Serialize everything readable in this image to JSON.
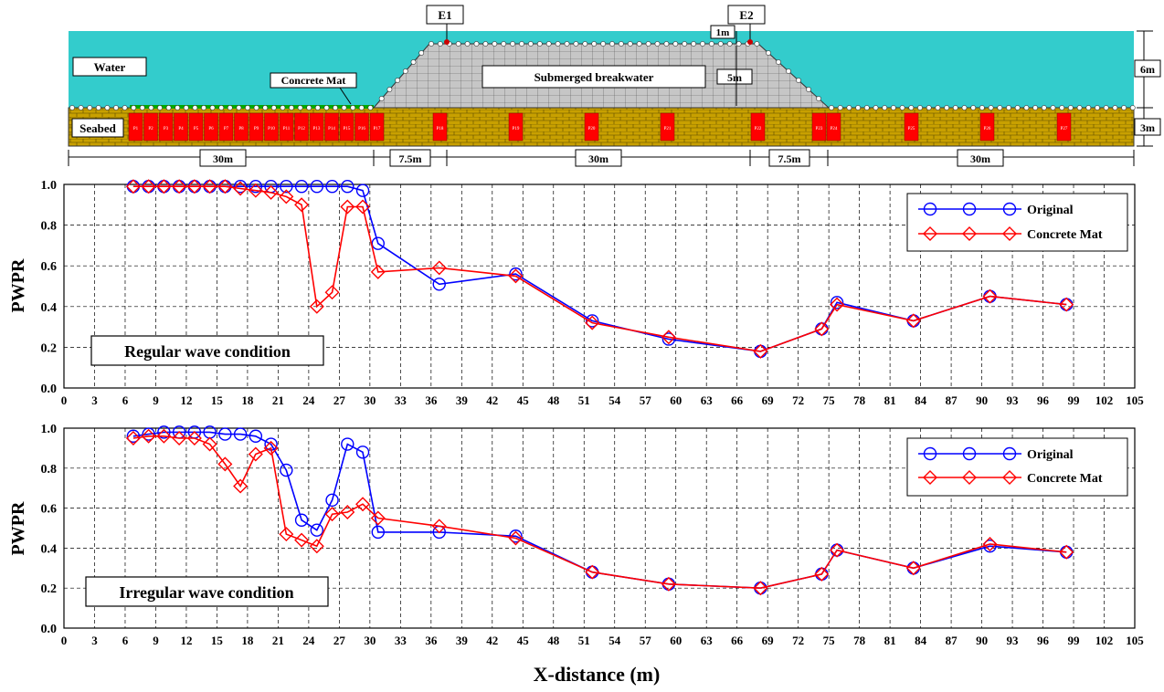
{
  "schematic": {
    "water_label": "Water",
    "seabed_label": "Seabed",
    "concrete_mat_label": "Concrete Mat",
    "breakwater_label": "Submerged breakwater",
    "gauge_labels": [
      "E1",
      "E2"
    ],
    "dim_1m": "1m",
    "dim_5m": "5m",
    "dim_6m": "6m",
    "dim_3m": "3m",
    "segment_dims": [
      "30m",
      "7.5m",
      "30m",
      "7.5m",
      "30m"
    ],
    "probe_labels": [
      "P1",
      "P2",
      "P3",
      "P4",
      "P5",
      "P6",
      "P7",
      "P8",
      "P9",
      "P10",
      "P11",
      "P12",
      "P13",
      "P14",
      "P15",
      "P16",
      "P17",
      "P18",
      "P19",
      "P20",
      "P21",
      "P22",
      "P23",
      "P24",
      "P25",
      "P26",
      "P27"
    ],
    "colors": {
      "water": "#33cccc",
      "seabed": "#c8a000",
      "probe": "#ff0000",
      "mat": "#00aa00",
      "breakwater": "#bdbdbd"
    }
  },
  "chart_data": [
    {
      "type": "line",
      "annotation": "Regular wave condition",
      "ylabel": "PWPR",
      "xlabel": "",
      "xlim": [
        0,
        105
      ],
      "ylim": [
        0,
        1.0
      ],
      "xticks": [
        0,
        3,
        6,
        9,
        12,
        15,
        18,
        21,
        24,
        27,
        30,
        33,
        36,
        39,
        42,
        45,
        48,
        51,
        54,
        57,
        60,
        63,
        66,
        69,
        72,
        75,
        78,
        81,
        84,
        87,
        90,
        93,
        96,
        99,
        102,
        105
      ],
      "yticks": [
        "0.0",
        "0.2",
        "0.4",
        "0.6",
        "0.8",
        "1.0"
      ],
      "grid": true,
      "legend_position": "top-right",
      "series": [
        {
          "name": "Original",
          "color": "#0000ff",
          "marker": "circle",
          "x": [
            6.8,
            8.3,
            9.8,
            11.3,
            12.8,
            14.3,
            15.8,
            17.3,
            18.8,
            20.3,
            21.8,
            23.3,
            24.8,
            26.3,
            27.8,
            29.3,
            30.8,
            36.8,
            44.3,
            51.8,
            59.3,
            68.3,
            74.3,
            75.8,
            83.3,
            90.8,
            98.3
          ],
          "y": [
            0.99,
            0.99,
            0.99,
            0.99,
            0.99,
            0.99,
            0.99,
            0.99,
            0.99,
            0.99,
            0.99,
            0.99,
            0.99,
            0.99,
            0.99,
            0.97,
            0.71,
            0.51,
            0.56,
            0.33,
            0.24,
            0.18,
            0.29,
            0.42,
            0.33,
            0.45,
            0.41
          ]
        },
        {
          "name": "Concrete Mat",
          "color": "#ff0000",
          "marker": "diamond",
          "x": [
            6.8,
            8.3,
            9.8,
            11.3,
            12.8,
            14.3,
            15.8,
            17.3,
            18.8,
            20.3,
            21.8,
            23.3,
            24.8,
            26.3,
            27.8,
            29.3,
            30.8,
            36.8,
            44.3,
            51.8,
            59.3,
            68.3,
            74.3,
            75.8,
            83.3,
            90.8,
            98.3
          ],
          "y": [
            0.99,
            0.99,
            0.99,
            0.99,
            0.99,
            0.99,
            0.99,
            0.98,
            0.97,
            0.96,
            0.94,
            0.9,
            0.4,
            0.47,
            0.89,
            0.89,
            0.57,
            0.59,
            0.55,
            0.32,
            0.25,
            0.18,
            0.29,
            0.41,
            0.33,
            0.45,
            0.41
          ]
        }
      ]
    },
    {
      "type": "line",
      "annotation": "Irregular wave condition",
      "ylabel": "PWPR",
      "xlabel": "X-distance (m)",
      "xlim": [
        0,
        105
      ],
      "ylim": [
        0,
        1.0
      ],
      "xticks": [
        0,
        3,
        6,
        9,
        12,
        15,
        18,
        21,
        24,
        27,
        30,
        33,
        36,
        39,
        42,
        45,
        48,
        51,
        54,
        57,
        60,
        63,
        66,
        69,
        72,
        75,
        78,
        81,
        84,
        87,
        90,
        93,
        96,
        99,
        102,
        105
      ],
      "yticks": [
        "0.0",
        "0.2",
        "0.4",
        "0.6",
        "0.8",
        "1.0"
      ],
      "grid": true,
      "legend_position": "top-right",
      "series": [
        {
          "name": "Original",
          "color": "#0000ff",
          "marker": "circle",
          "x": [
            6.8,
            8.3,
            9.8,
            11.3,
            12.8,
            14.3,
            15.8,
            17.3,
            18.8,
            20.3,
            21.8,
            23.3,
            24.8,
            26.3,
            27.8,
            29.3,
            30.8,
            36.8,
            44.3,
            51.8,
            59.3,
            68.3,
            74.3,
            75.8,
            83.3,
            90.8,
            98.3
          ],
          "y": [
            0.96,
            0.97,
            0.98,
            0.98,
            0.98,
            0.98,
            0.97,
            0.97,
            0.96,
            0.92,
            0.79,
            0.54,
            0.49,
            0.64,
            0.92,
            0.88,
            0.48,
            0.48,
            0.46,
            0.28,
            0.22,
            0.2,
            0.27,
            0.39,
            0.3,
            0.41,
            0.38
          ]
        },
        {
          "name": "Concrete Mat",
          "color": "#ff0000",
          "marker": "diamond",
          "x": [
            6.8,
            8.3,
            9.8,
            11.3,
            12.8,
            14.3,
            15.8,
            17.3,
            18.8,
            20.3,
            21.8,
            23.3,
            24.8,
            26.3,
            27.8,
            29.3,
            30.8,
            36.8,
            44.3,
            51.8,
            59.3,
            68.3,
            74.3,
            75.8,
            83.3,
            90.8,
            98.3
          ],
          "y": [
            0.95,
            0.96,
            0.96,
            0.95,
            0.95,
            0.92,
            0.82,
            0.71,
            0.87,
            0.9,
            0.47,
            0.44,
            0.41,
            0.57,
            0.58,
            0.62,
            0.55,
            0.51,
            0.45,
            0.28,
            0.22,
            0.2,
            0.27,
            0.39,
            0.3,
            0.42,
            0.38
          ]
        }
      ]
    }
  ]
}
